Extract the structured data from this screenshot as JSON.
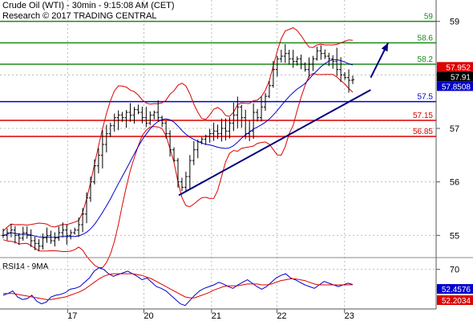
{
  "header": {
    "title": "Crude Oil (WTI) - 30min - 9:15:08 AM (CET)",
    "copyright": "Research © 2017 TRADING CENTRAL"
  },
  "colors": {
    "resistance": "#1a8a1a",
    "pivot": "#0000cc",
    "support": "#dd0000",
    "price": "#000000",
    "bollinger": "#dd0000",
    "moving_average": "#0000cc",
    "trendline": "#000080",
    "arrow": "#000080",
    "rsi": "#0000cc",
    "rsi_ma": "#dd0000",
    "current_price_badge": "#000000",
    "ma_badge": "#0000cc",
    "bollinger_badge": "#dd0000"
  },
  "chart_data": [
    {
      "type": "candlestick",
      "title": "Crude Oil (WTI) - 30min",
      "y_ticks": [
        "59",
        "58",
        "57",
        "56",
        "55"
      ],
      "ylim": [
        54.6,
        59.4
      ],
      "x_ticks": [
        "17",
        "20",
        "21",
        "22",
        "23"
      ],
      "grid": true,
      "levels": [
        {
          "label": "59",
          "value": 59.0,
          "kind": "resistance"
        },
        {
          "label": "58.6",
          "value": 58.6,
          "kind": "resistance"
        },
        {
          "label": "58.2",
          "value": 58.2,
          "kind": "resistance"
        },
        {
          "label": "57.5",
          "value": 57.5,
          "kind": "pivot"
        },
        {
          "label": "57.15",
          "value": 57.15,
          "kind": "support"
        },
        {
          "label": "56.85",
          "value": 56.85,
          "kind": "support"
        }
      ],
      "badges": [
        {
          "label": "57.952",
          "value": 57.952,
          "kind": "bollinger"
        },
        {
          "label": "57.91",
          "value": 57.91,
          "kind": "price"
        },
        {
          "label": "57.8508",
          "value": 57.8508,
          "kind": "moving_average"
        }
      ],
      "trendline": {
        "from": {
          "bar": 0.41,
          "value": 55.75
        },
        "to": {
          "bar": 0.85,
          "value": 57.72
        }
      },
      "arrow": {
        "from": {
          "bar": 0.85,
          "value": 57.95
        },
        "to": {
          "bar": 0.89,
          "value": 58.6
        }
      },
      "close_path": [
        55.0,
        55.05,
        55.1,
        55.0,
        54.95,
        55.05,
        55.0,
        54.9,
        54.85,
        54.8,
        54.95,
        55.0,
        54.9,
        54.95,
        55.05,
        55.1,
        55.0,
        55.05,
        55.1,
        55.2,
        55.4,
        55.7,
        56.0,
        56.3,
        56.5,
        56.7,
        56.9,
        57.05,
        57.2,
        57.25,
        57.2,
        57.3,
        57.25,
        57.35,
        57.3,
        57.2,
        57.1,
        57.25,
        57.3,
        57.2,
        57.1,
        56.9,
        56.6,
        56.4,
        56.0,
        55.9,
        56.1,
        56.4,
        56.6,
        56.75,
        56.8,
        56.85,
        56.9,
        56.95,
        56.9,
        57.0,
        56.95,
        57.1,
        57.25,
        57.4,
        57.2,
        56.9,
        56.95,
        57.3,
        57.2,
        57.4,
        57.6,
        57.8,
        58.1,
        58.3,
        58.35,
        58.4,
        58.3,
        58.25,
        58.3,
        58.2,
        58.1,
        58.2,
        58.3,
        58.45,
        58.4,
        58.35,
        58.3,
        58.25,
        58.1,
        58.0,
        57.95,
        57.9,
        57.91
      ]
    },
    {
      "type": "line",
      "title": "RSI14 - 9MA",
      "y_ticks": [
        "70"
      ],
      "ylim": [
        24,
        80
      ],
      "badges": [
        {
          "label": "52.4576",
          "value": 52.4576,
          "kind": "rsi"
        },
        {
          "label": "52.2034",
          "value": 52.2034,
          "kind": "rsi_ma"
        }
      ],
      "series": [
        {
          "name": "RSI14",
          "values": [
            40,
            42,
            45,
            38,
            35,
            36,
            40,
            33,
            30,
            32,
            38,
            40,
            41,
            43,
            47,
            48,
            50,
            55,
            60,
            68,
            72,
            70,
            65,
            62,
            64,
            66,
            68,
            65,
            62,
            58,
            60,
            55,
            50,
            48,
            45,
            40,
            35,
            30,
            28,
            34,
            40,
            45,
            48,
            50,
            52,
            55,
            53,
            50,
            48,
            52,
            55,
            58,
            54,
            50,
            47,
            50,
            55,
            60,
            63,
            65,
            60,
            58,
            55,
            52,
            50,
            48,
            52,
            56,
            54,
            52,
            50,
            52,
            54,
            52.4576
          ]
        },
        {
          "name": "9MA",
          "values": [
            42,
            42,
            42,
            41,
            40,
            39,
            38,
            37,
            36,
            35,
            35,
            36,
            37,
            38,
            40,
            42,
            44,
            47,
            51,
            55,
            59,
            62,
            64,
            65,
            65,
            65,
            65,
            65,
            64,
            63,
            61,
            59,
            56,
            53,
            50,
            47,
            44,
            41,
            38,
            37,
            37,
            39,
            41,
            43,
            46,
            48,
            50,
            51,
            51,
            51,
            52,
            53,
            53,
            53,
            52,
            52,
            53,
            55,
            57,
            58,
            59,
            59,
            58,
            57,
            55,
            53,
            52,
            52,
            52,
            52,
            52,
            52,
            52,
            52.2034
          ]
        }
      ]
    }
  ]
}
